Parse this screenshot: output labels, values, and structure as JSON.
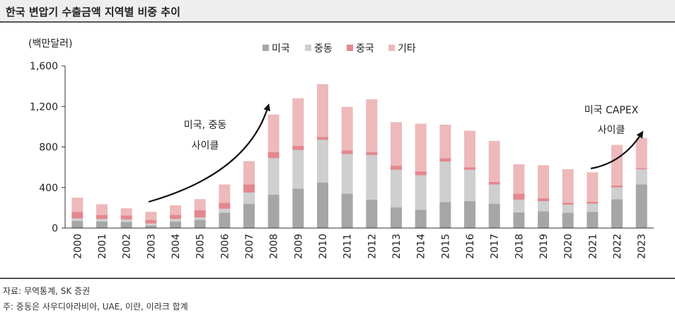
{
  "header": {
    "title": "한국 변압기 수출금액 지역별 비중 추이"
  },
  "footer": {
    "source": "자료: 무역통계, SK 증권",
    "note": "주: 중동은 사우디아라비아, UAE, 이란, 이라크 합계"
  },
  "chart_data": {
    "type": "bar",
    "stacked": true,
    "unit_label": "(백만달러)",
    "categories": [
      "2000",
      "2001",
      "2002",
      "2003",
      "2004",
      "2005",
      "2006",
      "2007",
      "2008",
      "2009",
      "2010",
      "2011",
      "2012",
      "2013",
      "2014",
      "2015",
      "2016",
      "2017",
      "2018",
      "2019",
      "2020",
      "2021",
      "2022",
      "2023"
    ],
    "series": [
      {
        "name": "미국",
        "color": "#a6a6a6",
        "values": [
          70,
          65,
          60,
          25,
          65,
          80,
          150,
          240,
          330,
          390,
          450,
          340,
          280,
          205,
          180,
          255,
          265,
          240,
          155,
          165,
          150,
          160,
          285,
          430
        ]
      },
      {
        "name": "중동",
        "color": "#cfcfcf",
        "values": [
          25,
          25,
          25,
          20,
          25,
          25,
          40,
          110,
          360,
          380,
          420,
          390,
          440,
          370,
          340,
          400,
          310,
          190,
          125,
          100,
          80,
          80,
          115,
          150
        ]
      },
      {
        "name": "중국",
        "color": "#e3888d",
        "values": [
          65,
          40,
          40,
          35,
          40,
          70,
          60,
          80,
          60,
          40,
          30,
          35,
          30,
          40,
          40,
          35,
          25,
          25,
          60,
          30,
          20,
          20,
          20,
          10
        ]
      },
      {
        "name": "기타",
        "color": "#edb9bb",
        "values": [
          140,
          105,
          70,
          80,
          95,
          110,
          180,
          230,
          370,
          470,
          520,
          430,
          520,
          430,
          470,
          330,
          360,
          405,
          290,
          325,
          330,
          290,
          400,
          300
        ]
      }
    ],
    "ylim": [
      0,
      1600
    ],
    "yticks": [
      "0",
      "400",
      "800",
      "1,200",
      "1,600"
    ],
    "ytick_values": [
      0,
      400,
      800,
      1200,
      1600
    ],
    "legend_position": "top",
    "grid": false,
    "annotations": [
      {
        "lines": [
          "미국, 중동",
          "사이클"
        ]
      },
      {
        "lines": [
          "미국 CAPEX",
          "사이클"
        ]
      }
    ]
  }
}
